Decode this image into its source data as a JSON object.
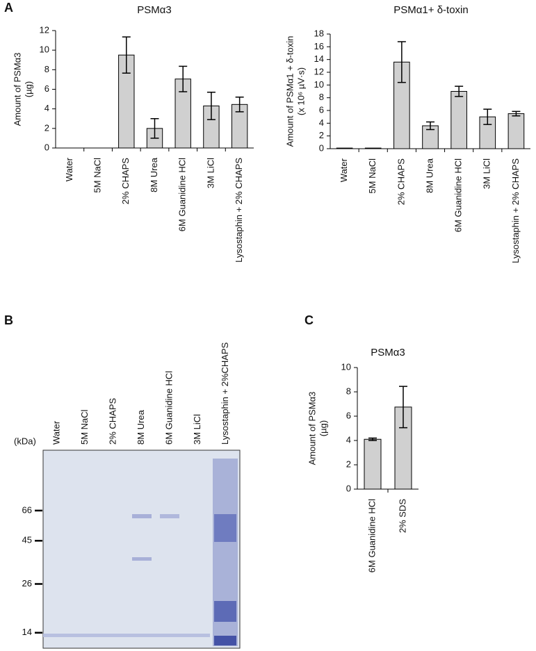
{
  "panel_labels": [
    "A",
    "B",
    "C"
  ],
  "chart_data": [
    {
      "type": "bar",
      "title": "PSMα3",
      "ylabel": [
        "Amount of PSMα3",
        "(µg)"
      ],
      "categories": [
        "Water",
        "5M NaCl",
        "2% CHAPS",
        "8M Urea",
        "6M Guanidine HCl",
        "3M LiCl",
        "Lysostaphin + 2% CHAPS"
      ],
      "values": [
        0,
        0,
        9.5,
        2.0,
        7.05,
        4.3,
        4.45
      ],
      "errors": [
        0,
        0,
        1.85,
        1.0,
        1.3,
        1.4,
        0.75
      ],
      "color": "#d0d0d0",
      "ylim": [
        0,
        12
      ],
      "yticks": [
        0,
        2,
        4,
        6,
        8,
        10,
        12
      ]
    },
    {
      "type": "bar",
      "title": "PSMα1+ δ-toxin",
      "ylabel": [
        "Amount of PSMα1 + δ-toxin",
        "(x 10⁶ µV·s)"
      ],
      "categories": [
        "Water",
        "5M NaCl",
        "2% CHAPS",
        "8M Urea",
        "6M Guanidine HCl",
        "3M LiCl",
        "Lysostaphin + 2% CHAPS"
      ],
      "values": [
        0.1,
        0.1,
        13.6,
        3.6,
        9.0,
        5.0,
        5.5
      ],
      "errors": [
        0,
        0,
        3.2,
        0.6,
        0.8,
        1.2,
        0.35
      ],
      "color": "#d0d0d0",
      "ylim": [
        0,
        18
      ],
      "yticks": [
        0,
        2,
        4,
        6,
        8,
        10,
        12,
        14,
        16,
        18
      ]
    },
    {
      "type": "gel",
      "ylabel": "(kDa)",
      "categories": [
        "Water",
        "5M NaCl",
        "2% CHAPS",
        "8M Urea",
        "6M Guanidine HCl",
        "3M LiCl",
        "Lysostaphin + 2%CHAPS"
      ],
      "log_scale": true,
      "ylim": [
        11.5,
        142
      ],
      "yticks": [
        66,
        45,
        26,
        14
      ]
    },
    {
      "type": "bar",
      "title": "PSMα3",
      "ylabel": [
        "Amount of PSMα3",
        "(µg)"
      ],
      "categories": [
        "6M Guanidine HCl",
        "2% SDS"
      ],
      "values": [
        4.1,
        6.75
      ],
      "errors": [
        0.1,
        1.7
      ],
      "color": "#d0d0d0",
      "ylim": [
        0,
        10
      ],
      "yticks": [
        0,
        2,
        4,
        6,
        8,
        10
      ]
    }
  ]
}
